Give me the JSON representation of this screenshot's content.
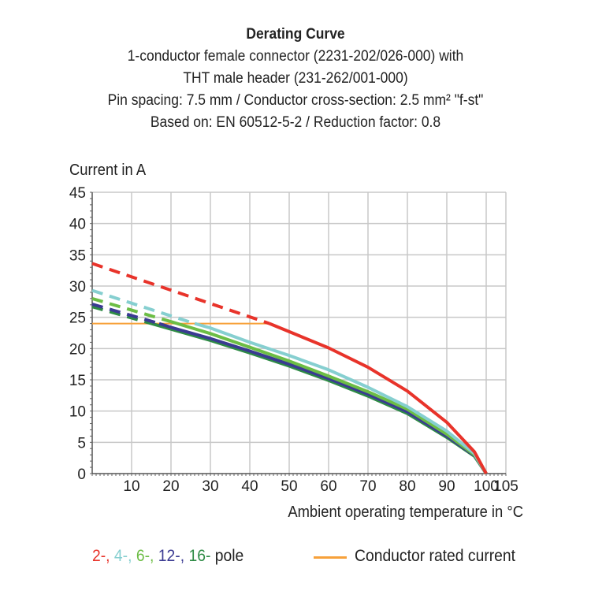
{
  "chart_data": {
    "type": "line",
    "title": "Derating Curve",
    "subtitle_lines": [
      "1-conductor female connector (2231-202/026-000) with",
      "THT male header (231-262/001-000)",
      "Pin spacing: 7.5 mm / Conductor cross-section: 2.5 mm² \"f-st\"",
      "Based on: EN 60512-5-2 / Reduction factor: 0.8"
    ],
    "ylabel": "Current in A",
    "xlabel": "Ambient operating temperature in °C",
    "xlim": [
      0,
      105
    ],
    "ylim": [
      0,
      45
    ],
    "xticks": [
      10,
      20,
      30,
      40,
      50,
      60,
      70,
      80,
      90,
      100,
      105
    ],
    "yticks": [
      0,
      5,
      10,
      15,
      20,
      25,
      30,
      35,
      40,
      45
    ],
    "grid": true,
    "legend": {
      "placement": "bottom",
      "pole_labels": [
        "2-,",
        "4-,",
        "6-,",
        "12-,",
        "16-"
      ],
      "pole_suffix": "pole",
      "rated_label": "Conductor rated current"
    },
    "series": [
      {
        "name": "2-",
        "color": "#e8332a",
        "dashed": [
          [
            0,
            33.6
          ],
          [
            45,
            24
          ]
        ],
        "solid": [
          [
            45,
            24
          ],
          [
            50,
            22.7
          ],
          [
            60,
            20.1
          ],
          [
            70,
            17
          ],
          [
            80,
            13.2
          ],
          [
            90,
            8.2
          ],
          [
            97,
            3.5
          ],
          [
            100,
            0
          ]
        ]
      },
      {
        "name": "4-",
        "color": "#86cfd0",
        "dashed": [
          [
            0,
            29.3
          ],
          [
            26,
            24
          ]
        ],
        "solid": [
          [
            26,
            24
          ],
          [
            30,
            23.3
          ],
          [
            40,
            21
          ],
          [
            50,
            18.9
          ],
          [
            60,
            16.6
          ],
          [
            70,
            13.8
          ],
          [
            80,
            10.7
          ],
          [
            90,
            6.8
          ],
          [
            97,
            3.2
          ],
          [
            100,
            0
          ]
        ]
      },
      {
        "name": "6-",
        "color": "#6cbd45",
        "dashed": [
          [
            0,
            28
          ],
          [
            20,
            24.3
          ]
        ],
        "solid": [
          [
            20,
            24.3
          ],
          [
            30,
            22.4
          ],
          [
            40,
            20.2
          ],
          [
            50,
            18
          ],
          [
            60,
            15.6
          ],
          [
            70,
            13.1
          ],
          [
            80,
            10.3
          ],
          [
            90,
            6.3
          ],
          [
            97,
            3
          ],
          [
            100,
            0
          ]
        ]
      },
      {
        "name": "12-",
        "color": "#3a3a92",
        "dashed": [
          [
            0,
            27.1
          ],
          [
            17,
            24
          ]
        ],
        "solid": [
          [
            17,
            24
          ],
          [
            20,
            23.4
          ],
          [
            30,
            21.6
          ],
          [
            40,
            19.6
          ],
          [
            50,
            17.5
          ],
          [
            60,
            15.2
          ],
          [
            70,
            12.7
          ],
          [
            80,
            9.9
          ],
          [
            90,
            6
          ],
          [
            97,
            2.9
          ],
          [
            100,
            0
          ]
        ]
      },
      {
        "name": "16-",
        "color": "#2e8b45",
        "dashed": [
          [
            0,
            26.7
          ],
          [
            15,
            24
          ]
        ],
        "solid": [
          [
            15,
            24
          ],
          [
            20,
            23.1
          ],
          [
            30,
            21.3
          ],
          [
            40,
            19.3
          ],
          [
            50,
            17.2
          ],
          [
            60,
            14.9
          ],
          [
            70,
            12.4
          ],
          [
            80,
            9.6
          ],
          [
            90,
            5.8
          ],
          [
            97,
            2.8
          ],
          [
            100,
            0
          ]
        ]
      }
    ],
    "rated_current": {
      "color": "#f7a13a",
      "value": 24,
      "x": [
        0,
        45
      ]
    }
  }
}
